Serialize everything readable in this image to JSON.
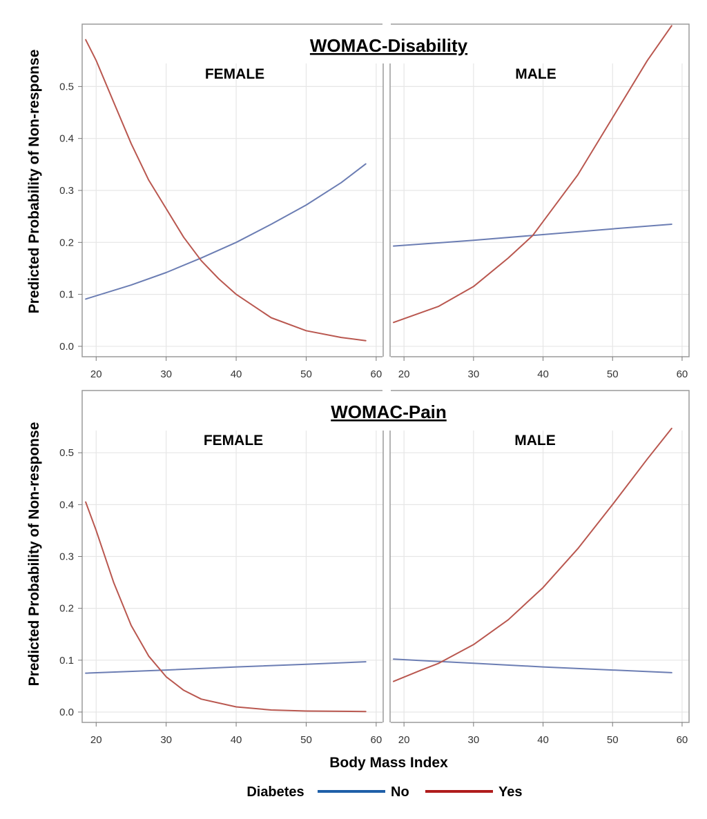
{
  "chart_data": {
    "type": "line",
    "xlabel": "Body Mass Index",
    "ylabel": "Predicted Probability of Non-response",
    "xlim": [
      18,
      61
    ],
    "ylim": [
      -0.02,
      0.62
    ],
    "x_ticks": [
      20,
      30,
      40,
      50,
      60
    ],
    "y_ticks": [
      "0.0",
      "0.1",
      "0.2",
      "0.3",
      "0.4",
      "0.5"
    ],
    "grid": true,
    "legend": {
      "title": "Diabetes",
      "position": "bottom",
      "entries": [
        {
          "label": "No",
          "color": "#1f5fa8"
        },
        {
          "label": "Yes",
          "color": "#b01c1c"
        }
      ]
    },
    "series_colors": {
      "No": "#6b7db3",
      "Yes": "#b9574f"
    },
    "sections": [
      {
        "title": "WOMAC-Disability",
        "panels": [
          {
            "label": "FEMALE",
            "series": [
              {
                "name": "No",
                "x": [
                  18.5,
                  25,
                  30,
                  35,
                  40,
                  45,
                  50,
                  55,
                  58.5
                ],
                "values": [
                  0.091,
                  0.118,
                  0.142,
                  0.17,
                  0.2,
                  0.235,
                  0.272,
                  0.315,
                  0.351
                ]
              },
              {
                "name": "Yes",
                "x": [
                  18.5,
                  20,
                  22.5,
                  25,
                  27.5,
                  30,
                  32.5,
                  35,
                  37.5,
                  40,
                  45,
                  50,
                  55,
                  58.5
                ],
                "values": [
                  0.59,
                  0.55,
                  0.47,
                  0.39,
                  0.32,
                  0.265,
                  0.21,
                  0.165,
                  0.13,
                  0.1,
                  0.055,
                  0.03,
                  0.017,
                  0.011
                ]
              }
            ]
          },
          {
            "label": "MALE",
            "series": [
              {
                "name": "No",
                "x": [
                  18.5,
                  30,
                  40,
                  50,
                  58.5
                ],
                "values": [
                  0.193,
                  0.204,
                  0.215,
                  0.226,
                  0.235
                ]
              },
              {
                "name": "Yes",
                "x": [
                  18.5,
                  25,
                  30,
                  35,
                  38.5,
                  40,
                  45,
                  50,
                  55,
                  58.5
                ],
                "values": [
                  0.046,
                  0.077,
                  0.115,
                  0.17,
                  0.213,
                  0.24,
                  0.33,
                  0.44,
                  0.55,
                  0.617
                ]
              }
            ]
          }
        ]
      },
      {
        "title": "WOMAC-Pain",
        "panels": [
          {
            "label": "FEMALE",
            "series": [
              {
                "name": "No",
                "x": [
                  18.5,
                  30,
                  40,
                  50,
                  58.5
                ],
                "values": [
                  0.075,
                  0.081,
                  0.087,
                  0.092,
                  0.097
                ]
              },
              {
                "name": "Yes",
                "x": [
                  18.5,
                  20,
                  22.5,
                  25,
                  27.5,
                  30,
                  32.5,
                  35,
                  40,
                  45,
                  50,
                  58.5
                ],
                "values": [
                  0.405,
                  0.35,
                  0.25,
                  0.167,
                  0.108,
                  0.068,
                  0.042,
                  0.025,
                  0.01,
                  0.004,
                  0.002,
                  0.001
                ]
              }
            ]
          },
          {
            "label": "MALE",
            "series": [
              {
                "name": "No",
                "x": [
                  18.5,
                  30,
                  40,
                  50,
                  58.5
                ],
                "values": [
                  0.102,
                  0.094,
                  0.087,
                  0.081,
                  0.076
                ]
              },
              {
                "name": "Yes",
                "x": [
                  18.5,
                  22.5,
                  25,
                  30,
                  35,
                  40,
                  45,
                  50,
                  55,
                  58.5
                ],
                "values": [
                  0.059,
                  0.081,
                  0.094,
                  0.13,
                  0.178,
                  0.24,
                  0.315,
                  0.4,
                  0.488,
                  0.547
                ]
              }
            ]
          }
        ]
      }
    ]
  }
}
